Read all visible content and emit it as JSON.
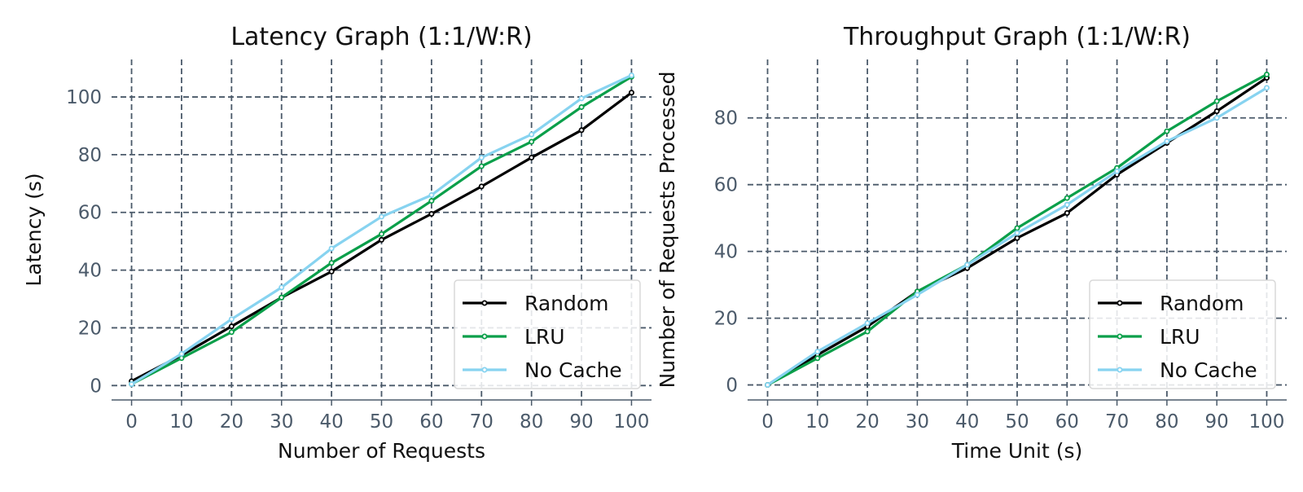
{
  "colors": {
    "text": "#111111",
    "tick": "#4b5a6a",
    "grid": "#4b5a6a"
  },
  "chart_data": [
    {
      "type": "line",
      "title": "Latency Graph (1:1/W:R)",
      "xlabel": "Number of Requests",
      "ylabel": "Latency (s)",
      "xlim": [
        -4,
        104
      ],
      "ylim": [
        -5,
        113
      ],
      "xticks": [
        0,
        10,
        20,
        30,
        40,
        50,
        60,
        70,
        80,
        90,
        100
      ],
      "yticks": [
        0,
        20,
        40,
        60,
        80,
        100
      ],
      "grid": true,
      "legend_position": "lower-right",
      "x": [
        0,
        10,
        20,
        30,
        40,
        50,
        60,
        70,
        80,
        90,
        100
      ],
      "series": [
        {
          "name": "Random",
          "color": "#000000",
          "values": [
            1.5,
            10.5,
            20.5,
            30.5,
            39.5,
            50.5,
            59.5,
            69,
            79,
            88.5,
            101.5
          ]
        },
        {
          "name": "LRU",
          "color": "#0a9f4a",
          "values": [
            0.5,
            9.5,
            18.5,
            30.5,
            42.5,
            52.5,
            64,
            76,
            84.5,
            96.5,
            107
          ]
        },
        {
          "name": "No Cache",
          "color": "#87d3f0",
          "values": [
            0.5,
            11,
            23,
            34,
            47.5,
            58.5,
            66,
            79,
            87,
            99.5,
            107.5
          ]
        }
      ]
    },
    {
      "type": "line",
      "title": "Throughput Graph (1:1/W:R)",
      "xlabel": "Time Unit (s)",
      "ylabel": "Number of Requests Processed",
      "xlim": [
        -4,
        104
      ],
      "ylim": [
        -4.5,
        97.5
      ],
      "xticks": [
        0,
        10,
        20,
        30,
        40,
        50,
        60,
        70,
        80,
        90,
        100
      ],
      "yticks": [
        0,
        20,
        40,
        60,
        80
      ],
      "grid": true,
      "legend_position": "lower-right",
      "x": [
        0,
        10,
        20,
        30,
        40,
        50,
        60,
        70,
        80,
        90,
        100
      ],
      "series": [
        {
          "name": "Random",
          "color": "#000000",
          "values": [
            0,
            9,
            17.5,
            28,
            35,
            44,
            51.5,
            63,
            72.5,
            82,
            92
          ]
        },
        {
          "name": "LRU",
          "color": "#0a9f4a",
          "values": [
            0,
            8,
            16,
            28,
            36,
            47,
            56,
            65,
            76,
            85,
            93
          ]
        },
        {
          "name": "No Cache",
          "color": "#87d3f0",
          "values": [
            0,
            10,
            18.5,
            27,
            36,
            45.5,
            54,
            64,
            73,
            80,
            89
          ]
        }
      ]
    }
  ]
}
